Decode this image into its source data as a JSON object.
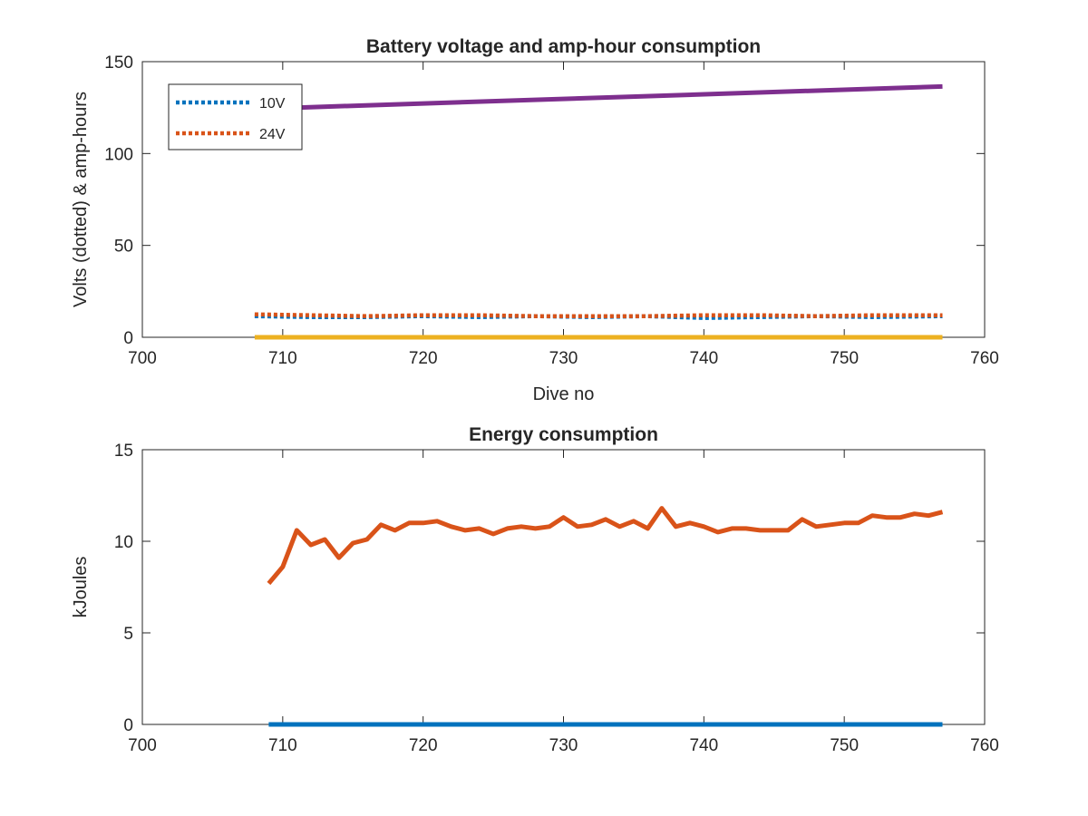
{
  "chart_data": [
    {
      "type": "line",
      "title": "Battery voltage and amp-hour consumption",
      "xlabel": "Dive no",
      "ylabel": "Volts (dotted) & amp-hours",
      "xlim": [
        700,
        760
      ],
      "ylim": [
        0,
        150
      ],
      "xticks": [
        700,
        710,
        720,
        730,
        740,
        750,
        760
      ],
      "yticks": [
        0,
        50,
        100,
        150
      ],
      "grid": false,
      "legend": {
        "placement": "top-left",
        "entries": [
          "10V",
          "24V"
        ]
      },
      "series": [
        {
          "name": "10V",
          "style": "dotted",
          "color": "#0072BD",
          "x": [
            708,
            712,
            716,
            720,
            724,
            728,
            732,
            736,
            740,
            744,
            748,
            752,
            757
          ],
          "y": [
            11.5,
            11.0,
            11.0,
            11.5,
            11.0,
            11.5,
            11.0,
            11.5,
            10.5,
            11.0,
            11.5,
            11.0,
            11.5
          ]
        },
        {
          "name": "24V",
          "style": "dotted",
          "color": "#D95319",
          "x": [
            708,
            712,
            716,
            720,
            724,
            728,
            732,
            736,
            740,
            744,
            748,
            752,
            757
          ],
          "y": [
            12.5,
            12.0,
            11.5,
            12.0,
            12.0,
            11.5,
            11.5,
            11.5,
            12.0,
            12.0,
            11.5,
            12.0,
            12.0
          ]
        },
        {
          "style": "solid",
          "color": "#EDB120",
          "x": [
            708,
            757
          ],
          "y": [
            0,
            0
          ]
        },
        {
          "style": "solid",
          "color": "#7E2F8E",
          "x": [
            711,
            757
          ],
          "y": [
            125,
            136.5
          ]
        }
      ]
    },
    {
      "type": "line",
      "title": "Energy consumption",
      "xlabel": "",
      "ylabel": "kJoules",
      "xlim": [
        700,
        760
      ],
      "ylim": [
        0,
        15
      ],
      "xticks": [
        700,
        710,
        720,
        730,
        740,
        750,
        760
      ],
      "yticks": [
        0,
        5,
        10,
        15
      ],
      "grid": false,
      "series": [
        {
          "style": "solid",
          "color": "#0072BD",
          "x": [
            709,
            757
          ],
          "y": [
            0,
            0
          ]
        },
        {
          "style": "solid",
          "color": "#D95319",
          "x": [
            709,
            710,
            711,
            712,
            713,
            714,
            715,
            716,
            717,
            718,
            719,
            720,
            721,
            722,
            723,
            724,
            725,
            726,
            727,
            728,
            729,
            730,
            731,
            732,
            733,
            734,
            735,
            736,
            737,
            738,
            739,
            740,
            741,
            742,
            743,
            744,
            745,
            746,
            747,
            748,
            749,
            750,
            751,
            752,
            753,
            754,
            755,
            756,
            757
          ],
          "y": [
            7.7,
            8.6,
            10.6,
            9.8,
            10.1,
            9.1,
            9.9,
            10.1,
            10.9,
            10.6,
            11.0,
            11.0,
            11.1,
            10.8,
            10.6,
            10.7,
            10.4,
            10.7,
            10.8,
            10.7,
            10.8,
            11.3,
            10.8,
            10.9,
            11.2,
            10.8,
            11.1,
            10.7,
            11.8,
            10.8,
            11.0,
            10.8,
            10.5,
            10.7,
            10.7,
            10.6,
            10.6,
            10.6,
            11.2,
            10.8,
            10.9,
            11.0,
            11.0,
            11.4,
            11.3,
            11.3,
            11.5,
            11.4,
            11.6
          ]
        }
      ]
    }
  ]
}
